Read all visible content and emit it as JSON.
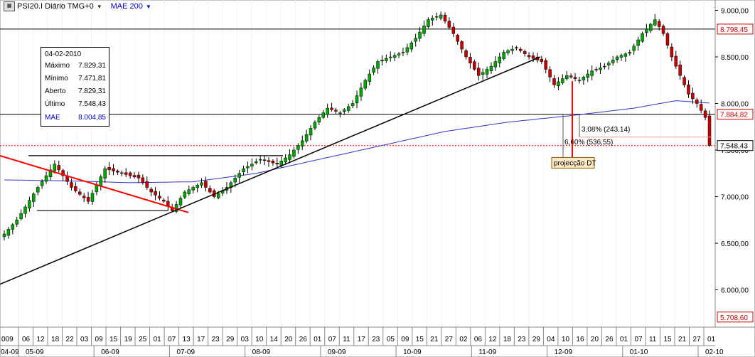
{
  "header": {
    "symbol": "PSI20.I Diário TMG+0",
    "indicator": "MAE 200"
  },
  "info_box": {
    "date": "04-02-2010",
    "rows": [
      {
        "label": "Máximo",
        "value": "7.829,31"
      },
      {
        "label": "Mínimo",
        "value": "7.471,81"
      },
      {
        "label": "Aberto",
        "value": "7.829,31"
      },
      {
        "label": "Último",
        "value": "7.548,43"
      }
    ],
    "mae": {
      "label": "MAE",
      "value": "8.004,85"
    }
  },
  "colors": {
    "up_candle": "#00aa00",
    "down_candle": "#cc0000",
    "moving_average": "#3333cc",
    "trend_red": "#ff0000",
    "trend_black": "#000000",
    "price_label_red": "#cc0000"
  },
  "chart_data": {
    "type": "candlestick",
    "ylim": [
      5600,
      9080
    ],
    "y_ticks": [
      "9.000,00",
      "8.500,00",
      "8.000,00",
      "7.500,00",
      "7.000,00",
      "6.500,00",
      "6.000,00"
    ],
    "price_labels": {
      "top_resistance": "8.798,45",
      "mid_support": "7.884,82",
      "last": "7.548,43",
      "bottom": "5.708,60"
    },
    "price_levels": {
      "top_resistance": 8798.45,
      "mid_support": 7884.82,
      "last": 7548.43,
      "bottom": 5708.6
    },
    "x_day_ticks": [
      "06",
      "12",
      "18",
      "22",
      "03",
      "09",
      "15",
      "19",
      "25",
      "01",
      "07",
      "13",
      "17",
      "23",
      "29",
      "03",
      "10",
      "14",
      "20",
      "26",
      "01",
      "07",
      "11",
      "17",
      "23",
      "05",
      "09",
      "15",
      "21",
      "27",
      "02",
      "06",
      "12",
      "18",
      "23",
      "29",
      "04",
      "10",
      "16",
      "20",
      "26",
      "01",
      "07",
      "11",
      "15",
      "21",
      "27",
      "01"
    ],
    "x_month_ticks": [
      "05-09",
      "06-09",
      "07-09",
      "08-09",
      "09-09",
      "10-09",
      "11-09",
      "12-09",
      "01-10",
      "02-10"
    ],
    "x_edge_left_day": "009",
    "x_edge_left_month": "04-09",
    "projection": {
      "label": "projecção DT",
      "pct_upper": "3,08% (243,14)",
      "pct_lower": "6,60% (536,55)"
    },
    "ohlc_path": [
      [
        0,
        6600
      ],
      [
        3,
        6750
      ],
      [
        8,
        7100
      ],
      [
        12,
        7350
      ],
      [
        16,
        7100
      ],
      [
        20,
        6950
      ],
      [
        24,
        7300
      ],
      [
        28,
        7250
      ],
      [
        32,
        7200
      ],
      [
        35,
        7050
      ],
      [
        38,
        6950
      ],
      [
        40,
        6850
      ],
      [
        43,
        7050
      ],
      [
        47,
        7150
      ],
      [
        50,
        7000
      ],
      [
        53,
        7100
      ],
      [
        57,
        7300
      ],
      [
        61,
        7400
      ],
      [
        65,
        7350
      ],
      [
        68,
        7450
      ],
      [
        71,
        7600
      ],
      [
        74,
        7800
      ],
      [
        77,
        7950
      ],
      [
        80,
        7900
      ],
      [
        83,
        8000
      ],
      [
        86,
        8250
      ],
      [
        89,
        8450
      ],
      [
        92,
        8500
      ],
      [
        95,
        8550
      ],
      [
        98,
        8700
      ],
      [
        101,
        8900
      ],
      [
        104,
        8950
      ],
      [
        107,
        8750
      ],
      [
        110,
        8500
      ],
      [
        113,
        8300
      ],
      [
        116,
        8400
      ],
      [
        119,
        8550
      ],
      [
        122,
        8600
      ],
      [
        125,
        8500
      ],
      [
        128,
        8450
      ],
      [
        131,
        8200
      ],
      [
        134,
        8300
      ],
      [
        137,
        8250
      ],
      [
        140,
        8350
      ],
      [
        143,
        8400
      ],
      [
        146,
        8500
      ],
      [
        149,
        8550
      ],
      [
        152,
        8750
      ],
      [
        155,
        8900
      ],
      [
        157,
        8750
      ],
      [
        159,
        8500
      ],
      [
        161,
        8300
      ],
      [
        163,
        8100
      ],
      [
        165,
        8000
      ],
      [
        167,
        7850
      ],
      [
        168,
        7550
      ]
    ],
    "mae_path": [
      [
        0,
        7180
      ],
      [
        15,
        7170
      ],
      [
        30,
        7150
      ],
      [
        45,
        7160
      ],
      [
        60,
        7250
      ],
      [
        75,
        7400
      ],
      [
        90,
        7550
      ],
      [
        105,
        7700
      ],
      [
        120,
        7800
      ],
      [
        135,
        7870
      ],
      [
        150,
        7950
      ],
      [
        160,
        8030
      ],
      [
        168,
        8005
      ]
    ]
  }
}
